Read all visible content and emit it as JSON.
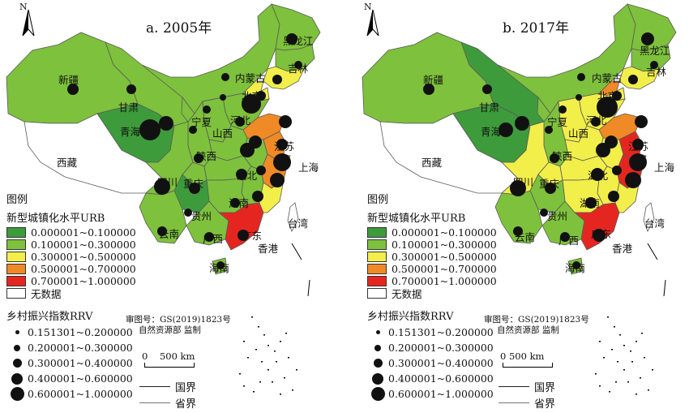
{
  "panels": [
    {
      "title": "a. 2005年",
      "id": "a"
    },
    {
      "title": "b. 2017年",
      "id": "b"
    }
  ],
  "north_arrow": "N",
  "legend": {
    "title": "图例",
    "urb_title": "新型城镇化水平URB",
    "urb_classes": [
      {
        "label": "0.000001~0.100000",
        "color": "#3e9b3b"
      },
      {
        "label": "0.100001~0.300000",
        "color": "#7ec13c"
      },
      {
        "label": "0.300001~0.500000",
        "color": "#f2ee4a"
      },
      {
        "label": "0.500001~0.700000",
        "color": "#f08a26"
      },
      {
        "label": "0.700001~1.000000",
        "color": "#e52620"
      },
      {
        "label": "无数据",
        "color": "#ffffff"
      }
    ],
    "rrv_title": "乡村振兴指数RRV",
    "rrv_classes": [
      {
        "label": "0.151301~0.200000"
      },
      {
        "label": "0.200001~0.300000"
      },
      {
        "label": "0.300001~0.400000"
      },
      {
        "label": "0.400001~0.600000"
      },
      {
        "label": "0.600001~1.000000"
      }
    ]
  },
  "review": {
    "line1": "审图号：GS(2019)1823号",
    "line2": "自然资源部 监制"
  },
  "scale": {
    "label": "0    500 km"
  },
  "lines": {
    "national": "国界",
    "provincial": "省界"
  },
  "province_labels": {
    "xinjiang": "新疆",
    "xizang": "西藏",
    "qinghai": "青海",
    "gansu": "甘肃",
    "neimenggu": "内蒙古",
    "heilongjiang": "黑龙江",
    "jilin": "吉林",
    "beijing": "北京",
    "hebei": "河北",
    "shanxi": "山西",
    "shaanxi": "陕西",
    "ningxia": "宁夏",
    "sichuan": "四川",
    "chongqing": "重庆",
    "hubei": "湖北",
    "hunan": "湖南",
    "guizhou": "贵州",
    "yunnan": "云南",
    "guangxi": "广西",
    "guangdong": "广东",
    "hainan": "海南",
    "taiwan": "台湾",
    "shanghai": "上海",
    "xianggang": "香港",
    "jiangsu": "江苏"
  },
  "map": {
    "urb_2005": {
      "xinjiang": 2,
      "xizang": 6,
      "qinghai": 1,
      "gansu": 2,
      "neimenggu": 2,
      "heilongjiang": 2,
      "jilin": 2,
      "liaoning": 3,
      "beijing": 3,
      "tianjin": 3,
      "hebei": 2,
      "shanxi": 2,
      "shandong": 4,
      "henan": 2,
      "shaanxi": 2,
      "ningxia": 2,
      "sichuan": 2,
      "chongqing": 2,
      "hubei": 2,
      "hunan": 2,
      "jiangxi": 2,
      "anhui": 2,
      "jiangsu": 4,
      "shanghai": 4,
      "zhejiang": 4,
      "fujian": 3,
      "guangdong": 5,
      "guangxi": 2,
      "guizhou": 1,
      "yunnan": 2,
      "hainan": 2,
      "taiwan": 6
    },
    "urb_2017": {
      "xinjiang": 2,
      "xizang": 6,
      "qinghai": 1,
      "gansu": 1,
      "neimenggu": 2,
      "heilongjiang": 2,
      "jilin": 2,
      "liaoning": 3,
      "beijing": 4,
      "tianjin": 3,
      "hebei": 3,
      "shanxi": 3,
      "shandong": 4,
      "henan": 3,
      "shaanxi": 2,
      "ningxia": 2,
      "sichuan": 3,
      "chongqing": 3,
      "hubei": 3,
      "hunan": 3,
      "jiangxi": 3,
      "anhui": 3,
      "jiangsu": 5,
      "shanghai": 5,
      "zhejiang": 5,
      "fujian": 3,
      "guangdong": 5,
      "guangxi": 2,
      "guizhou": 2,
      "yunnan": 2,
      "hainan": 2,
      "taiwan": 6
    }
  },
  "colors": {
    "c1": "#3e9b3b",
    "c2": "#7ec13c",
    "c3": "#f2ee4a",
    "c4": "#f08a26",
    "c5": "#e52620",
    "c6": "#ffffff",
    "border": "#5a5a5a"
  }
}
